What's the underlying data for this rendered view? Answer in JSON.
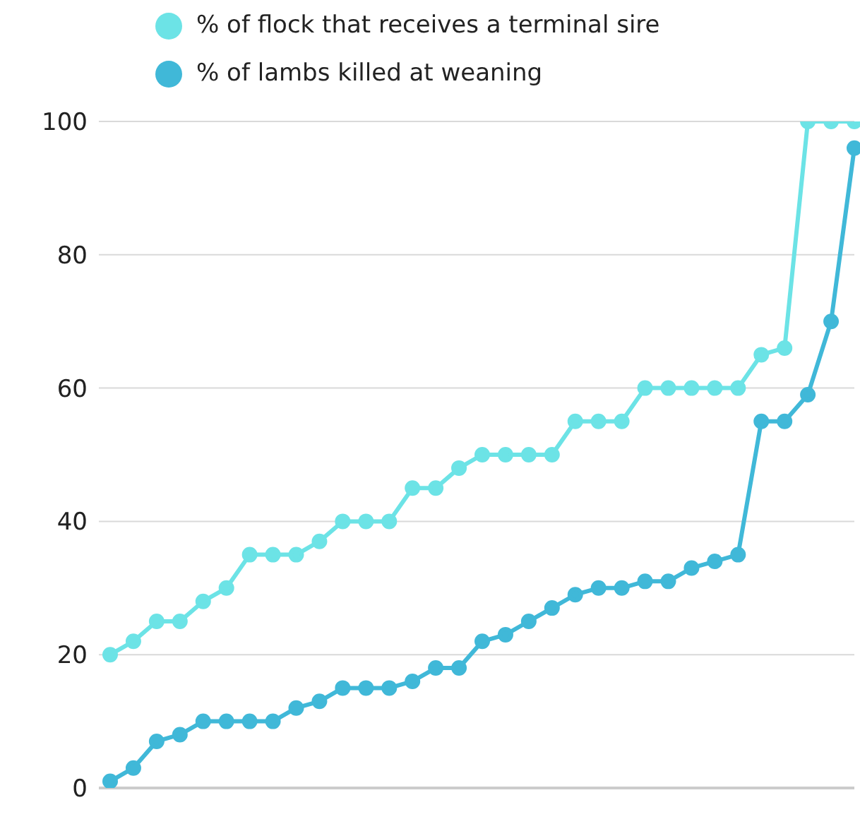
{
  "chart_data": {
    "type": "line",
    "categories": [
      null,
      null,
      null,
      null,
      null,
      null,
      null,
      null,
      null,
      null,
      null,
      null,
      null,
      null,
      null,
      null,
      null,
      null,
      null,
      null,
      null,
      null,
      null,
      null,
      null,
      null,
      null,
      null,
      null,
      null,
      null,
      null,
      null
    ],
    "series": [
      {
        "name": "% of flock that receives a terminal sire",
        "color": "#6ce3e6",
        "values": [
          20,
          22,
          25,
          25,
          28,
          30,
          35,
          35,
          35,
          37,
          40,
          40,
          40,
          45,
          45,
          48,
          50,
          50,
          50,
          50,
          55,
          55,
          55,
          60,
          60,
          60,
          60,
          60,
          65,
          66,
          100,
          100,
          100
        ]
      },
      {
        "name": "% of lambs killed at weaning",
        "color": "#40b8d8",
        "values": [
          1,
          3,
          7,
          8,
          10,
          10,
          10,
          10,
          12,
          13,
          15,
          15,
          15,
          16,
          18,
          18,
          22,
          23,
          25,
          27,
          29,
          30,
          30,
          31,
          31,
          33,
          34,
          35,
          55,
          55,
          59,
          70,
          96
        ]
      }
    ],
    "ylim": [
      0,
      100
    ],
    "yticks": [
      0,
      20,
      40,
      60,
      80,
      100
    ],
    "grid": "y",
    "legend": "top left",
    "marker": "circle",
    "tick_labels": "y"
  }
}
